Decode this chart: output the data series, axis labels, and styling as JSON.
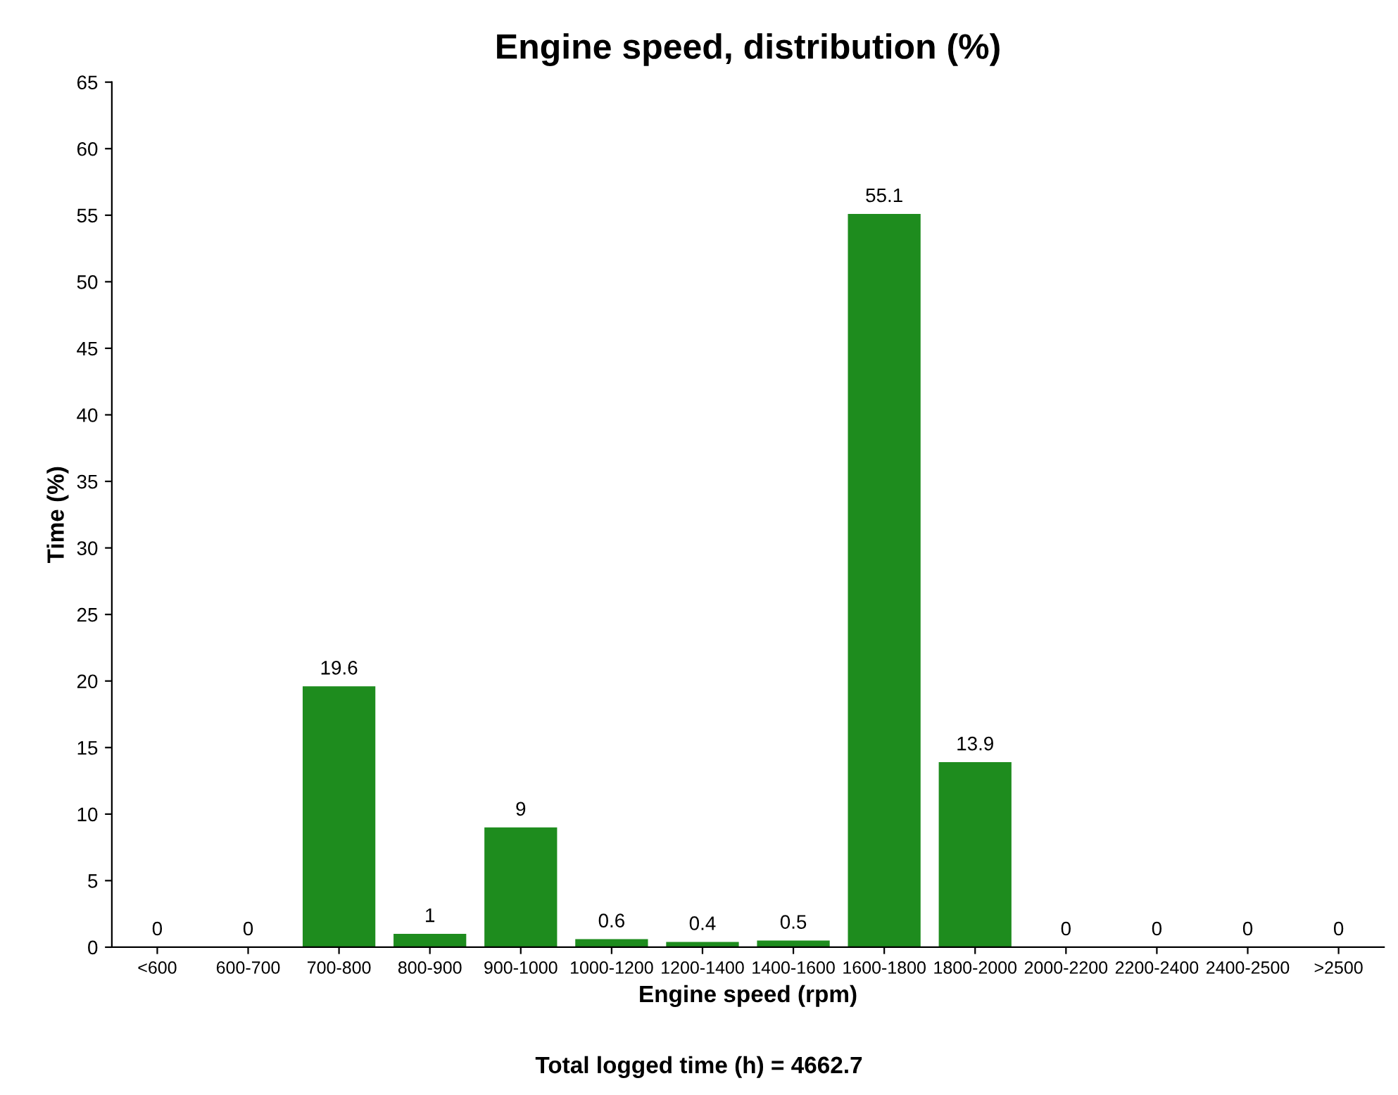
{
  "chart_data": {
    "type": "bar",
    "title": "Engine speed, distribution (%)",
    "xlabel": "Engine speed (rpm)",
    "ylabel": "Time (%)",
    "categories": [
      "<600",
      "600-700",
      "700-800",
      "800-900",
      "900-1000",
      "1000-1200",
      "1200-1400",
      "1400-1600",
      "1600-1800",
      "1800-2000",
      "2000-2200",
      "2200-2400",
      "2400-2500",
      ">2500"
    ],
    "values": [
      0,
      0,
      19.6,
      1,
      9,
      0.6,
      0.4,
      0.5,
      55.1,
      13.9,
      0,
      0,
      0,
      0
    ],
    "color": "#1e8c1e",
    "ylim": [
      0,
      65
    ],
    "yticks": [
      0,
      5,
      10,
      15,
      20,
      25,
      30,
      35,
      40,
      45,
      50,
      55,
      60,
      65
    ],
    "data_labels": true,
    "grid": false,
    "annotations": [
      "Total logged time (h) = 4662.7"
    ]
  }
}
